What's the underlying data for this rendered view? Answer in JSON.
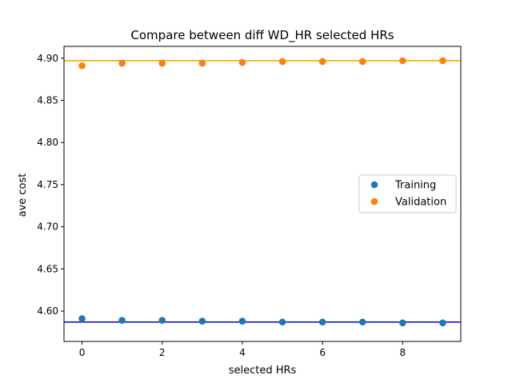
{
  "chart_data": {
    "type": "scatter",
    "title": "Compare between diff WD_HR selected HRs",
    "xlabel": "selected HRs",
    "ylabel": "ave cost",
    "xlim": [
      -0.45,
      9.45
    ],
    "ylim": [
      4.564,
      4.914
    ],
    "xticks": [
      0,
      2,
      4,
      6,
      8
    ],
    "xtick_labels": [
      "0",
      "2",
      "4",
      "6",
      "8"
    ],
    "yticks": [
      4.6,
      4.65,
      4.7,
      4.75,
      4.8,
      4.85,
      4.9
    ],
    "ytick_labels": [
      "4.60",
      "4.65",
      "4.70",
      "4.75",
      "4.80",
      "4.85",
      "4.90"
    ],
    "x": [
      0,
      1,
      2,
      3,
      4,
      5,
      6,
      7,
      8,
      9
    ],
    "series": [
      {
        "name": "Training",
        "color": "#1f77b4",
        "values": [
          4.591,
          4.589,
          4.589,
          4.588,
          4.588,
          4.587,
          4.587,
          4.587,
          4.586,
          4.586
        ],
        "hline": 4.587,
        "hline_color": "#0000cc"
      },
      {
        "name": "Validation",
        "color": "#ff7f0e",
        "values": [
          4.891,
          4.894,
          4.894,
          4.894,
          4.895,
          4.896,
          4.896,
          4.896,
          4.897,
          4.897
        ],
        "hline": 4.897,
        "hline_color": "#ffa500"
      }
    ],
    "legend_position": "center-right",
    "grid": false
  }
}
